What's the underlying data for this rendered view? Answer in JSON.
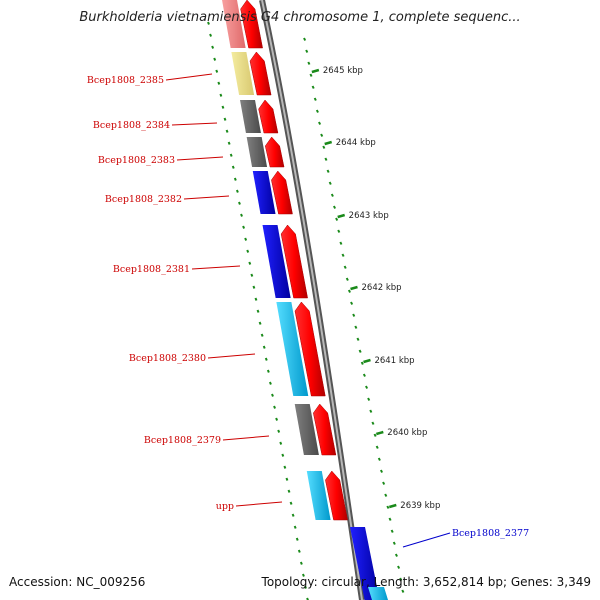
{
  "title": "Burkholderia vietnamiensis G4 chromosome 1, complete sequenc...",
  "footer": {
    "accession_label": "Accession:",
    "accession": "NC_009256",
    "topology_label": "Topology:",
    "topology": "circular",
    "length_label": "Length:",
    "length": "3,652,814 bp",
    "genes_label": "Genes:",
    "genes": "3,349"
  },
  "colors": {
    "backbone": "#7f7f7f",
    "forward_arrow": "#ff0000",
    "tick": "#1a8a1a",
    "label_forward": "#cc0000",
    "label_reverse": "#0000cc",
    "cog_yellow": "#eee08a",
    "cog_gray": "#666666",
    "cog_blue": "#1010dd",
    "cog_cyan": "#22bbee",
    "cog_pink": "#f08080"
  },
  "ruler": [
    {
      "label": "2645 kbp"
    },
    {
      "label": "2644 kbp"
    },
    {
      "label": "2643 kbp"
    },
    {
      "label": "2642 kbp"
    },
    {
      "label": "2641 kbp"
    },
    {
      "label": "2640 kbp"
    },
    {
      "label": "2639 kbp"
    }
  ],
  "genes": [
    {
      "name": "",
      "strand": "+",
      "cog": "pink"
    },
    {
      "name": "Bcep1808_2385",
      "strand": "+",
      "cog": "yellow"
    },
    {
      "name": "Bcep1808_2384",
      "strand": "+",
      "cog": "gray"
    },
    {
      "name": "Bcep1808_2383",
      "strand": "+",
      "cog": "gray"
    },
    {
      "name": "Bcep1808_2382",
      "strand": "+",
      "cog": "blue"
    },
    {
      "name": "Bcep1808_2381",
      "strand": "+",
      "cog": "blue"
    },
    {
      "name": "Bcep1808_2380",
      "strand": "+",
      "cog": "cyan"
    },
    {
      "name": "Bcep1808_2379",
      "strand": "+",
      "cog": "gray"
    },
    {
      "name": "upp",
      "strand": "+",
      "cog": "cyan"
    },
    {
      "name": "Bcep1808_2377",
      "strand": "-",
      "cog": "blue"
    }
  ]
}
